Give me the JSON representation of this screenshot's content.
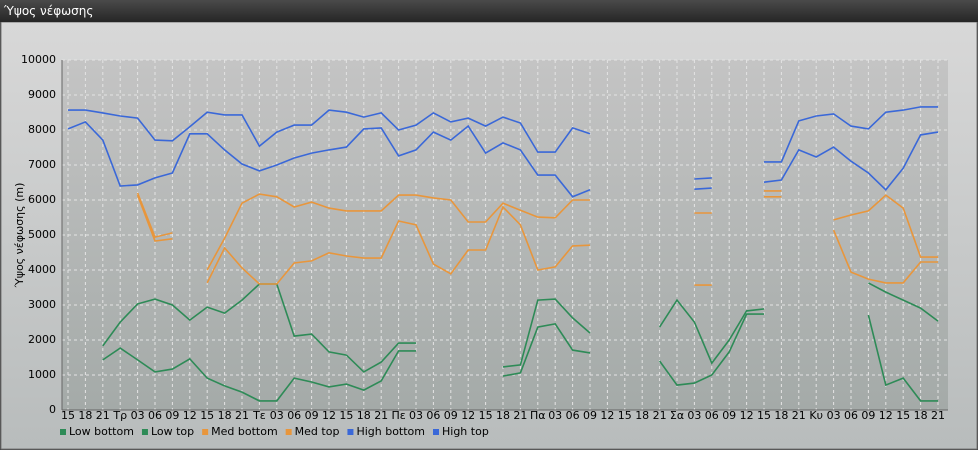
{
  "window_title": "Ύψος νέφωσης",
  "chart_data": {
    "type": "line",
    "ylabel": "Ύψος νέφωσης (m)",
    "categories": [
      "15",
      "18",
      "21",
      "Τρ",
      "03",
      "06",
      "09",
      "12",
      "15",
      "18",
      "21",
      "Τε",
      "03",
      "06",
      "09",
      "12",
      "15",
      "18",
      "21",
      "Πε",
      "03",
      "06",
      "09",
      "12",
      "15",
      "18",
      "21",
      "Πα",
      "03",
      "06",
      "09",
      "12",
      "15",
      "18",
      "21",
      "Σα",
      "03",
      "06",
      "09",
      "12",
      "15",
      "18",
      "21",
      "Κυ",
      "03",
      "06",
      "09",
      "12",
      "15",
      "18",
      "21"
    ],
    "ylim": [
      0,
      10000
    ],
    "yticks": [
      0,
      1000,
      2000,
      3000,
      4000,
      5000,
      6000,
      7000,
      8000,
      9000,
      10000
    ],
    "grid": true,
    "legend": "bottom-left",
    "series": [
      {
        "name": "Low bottom",
        "color": "#2e8b57",
        "values": [
          null,
          null,
          1430,
          1770,
          1430,
          1090,
          1170,
          1460,
          910,
          690,
          510,
          260,
          260,
          910,
          800,
          660,
          740,
          570,
          830,
          1690,
          1690,
          null,
          null,
          null,
          null,
          970,
          1060,
          2370,
          2460,
          1710,
          1630,
          null,
          null,
          null,
          1400,
          710,
          770,
          1000,
          1660,
          2740,
          2740,
          null,
          null,
          null,
          null,
          null,
          2710,
          710,
          910,
          260,
          260
        ]
      },
      {
        "name": "Low top",
        "color": "#2e8b57",
        "values": [
          null,
          null,
          1830,
          2510,
          3030,
          3170,
          3000,
          2570,
          2940,
          2770,
          3140,
          3600,
          3600,
          2110,
          2170,
          1660,
          1570,
          1090,
          1370,
          1910,
          1910,
          null,
          null,
          null,
          null,
          1230,
          1290,
          3140,
          3170,
          2630,
          2200,
          null,
          null,
          null,
          2370,
          3140,
          2510,
          1340,
          2000,
          2830,
          2890,
          null,
          null,
          null,
          null,
          null,
          3630,
          3370,
          3140,
          2910,
          2540
        ]
      },
      {
        "name": "Med bottom",
        "color": "#e8963c",
        "values": [
          null,
          null,
          null,
          null,
          6140,
          4830,
          4890,
          null,
          3630,
          4630,
          4060,
          3600,
          3600,
          4200,
          4260,
          4490,
          4400,
          4340,
          4340,
          5400,
          5290,
          4170,
          3890,
          4570,
          4570,
          5800,
          5290,
          4000,
          4090,
          4690,
          4710,
          null,
          null,
          null,
          null,
          null,
          3570,
          3570,
          null,
          null,
          6090,
          6090,
          null,
          null,
          5140,
          3940,
          3740,
          3630,
          3630,
          4230,
          4230
        ]
      },
      {
        "name": "Med top",
        "color": "#e8963c",
        "values": [
          null,
          null,
          null,
          null,
          6200,
          4940,
          5060,
          null,
          4000,
          4910,
          5910,
          6170,
          6090,
          5800,
          5940,
          5770,
          5690,
          5690,
          5690,
          6140,
          6140,
          6060,
          6000,
          5370,
          5370,
          5910,
          5710,
          5510,
          5490,
          6000,
          6000,
          null,
          null,
          null,
          null,
          null,
          5630,
          5630,
          null,
          null,
          6260,
          6260,
          null,
          null,
          5430,
          5570,
          5690,
          6140,
          5770,
          4370,
          4370
        ]
      },
      {
        "name": "High bottom",
        "color": "#3a68d8",
        "values": [
          8030,
          8230,
          7710,
          6400,
          6430,
          6630,
          6770,
          7890,
          7890,
          7430,
          7030,
          6830,
          7000,
          7200,
          7340,
          7430,
          7510,
          8030,
          8060,
          7260,
          7430,
          7940,
          7710,
          8110,
          7340,
          7630,
          7430,
          6710,
          6710,
          6090,
          6290,
          null,
          null,
          null,
          null,
          null,
          6310,
          6340,
          null,
          null,
          6510,
          6570,
          7430,
          7230,
          7510,
          7110,
          6770,
          6290,
          6910,
          7860,
          7940
        ]
      },
      {
        "name": "High top",
        "color": "#3a68d8",
        "values": [
          8570,
          8570,
          8490,
          8400,
          8340,
          7710,
          7690,
          8090,
          8510,
          8430,
          8430,
          7540,
          7940,
          8140,
          8140,
          8570,
          8510,
          8370,
          8490,
          8000,
          8140,
          8490,
          8230,
          8340,
          8110,
          8370,
          8200,
          7370,
          7370,
          8060,
          7890,
          null,
          null,
          null,
          null,
          null,
          6600,
          6630,
          null,
          null,
          7090,
          7090,
          8260,
          8400,
          8460,
          8110,
          8030,
          8510,
          8570,
          8660,
          8660
        ]
      }
    ]
  }
}
